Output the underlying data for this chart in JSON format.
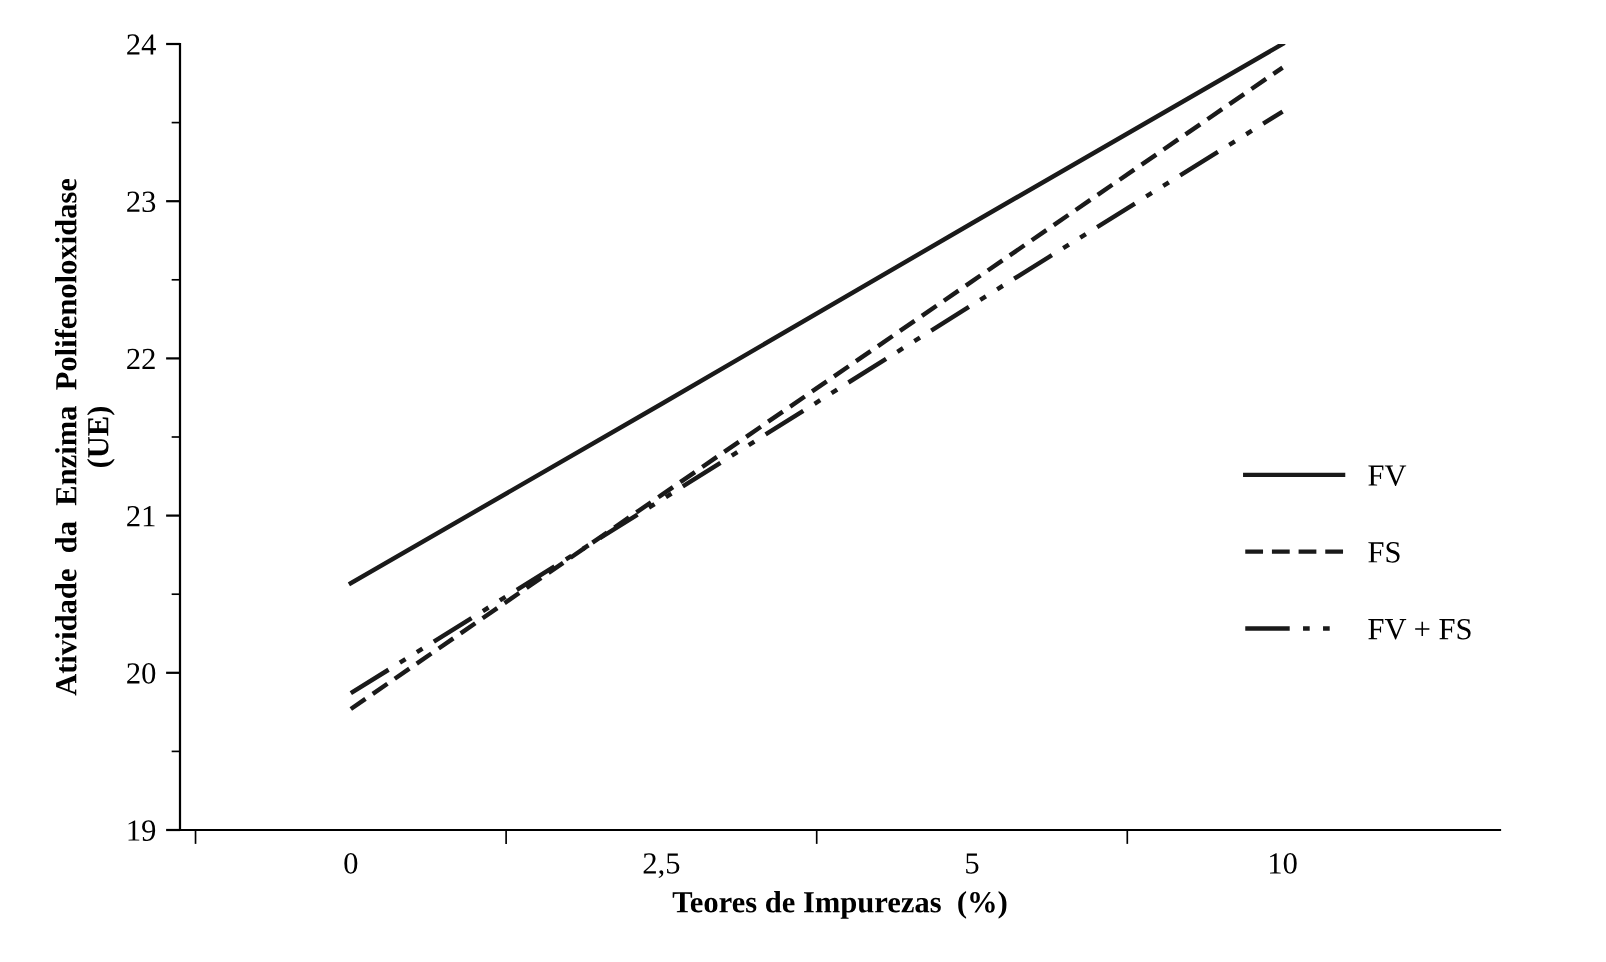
{
  "chart_data": {
    "type": "line",
    "xlabel": "Teores de Impurezas  (%)",
    "ylabel": "Atividade  da  Enzima  Polifenoloxidase\n(UE)",
    "categories": [
      "0",
      "2,5",
      "5",
      "10"
    ],
    "series": [
      {
        "name": "FV",
        "color": "#1a1a1a",
        "line_style": "solid",
        "values": [
          20.57,
          21.71,
          22.86,
          24.0
        ]
      },
      {
        "name": "FS",
        "color": "#1a1a1a",
        "line_style": "dashed",
        "values": [
          19.77,
          21.13,
          22.49,
          23.85
        ]
      },
      {
        "name": "FV + FS",
        "color": "#1a1a1a",
        "line_style": "dashdotdot",
        "values": [
          19.87,
          21.1,
          22.34,
          23.57
        ]
      }
    ],
    "ylim": [
      19,
      24
    ],
    "yticks": [
      19,
      20,
      21,
      22,
      23,
      24
    ],
    "grid": false,
    "legend": "right",
    "marker": "none"
  }
}
